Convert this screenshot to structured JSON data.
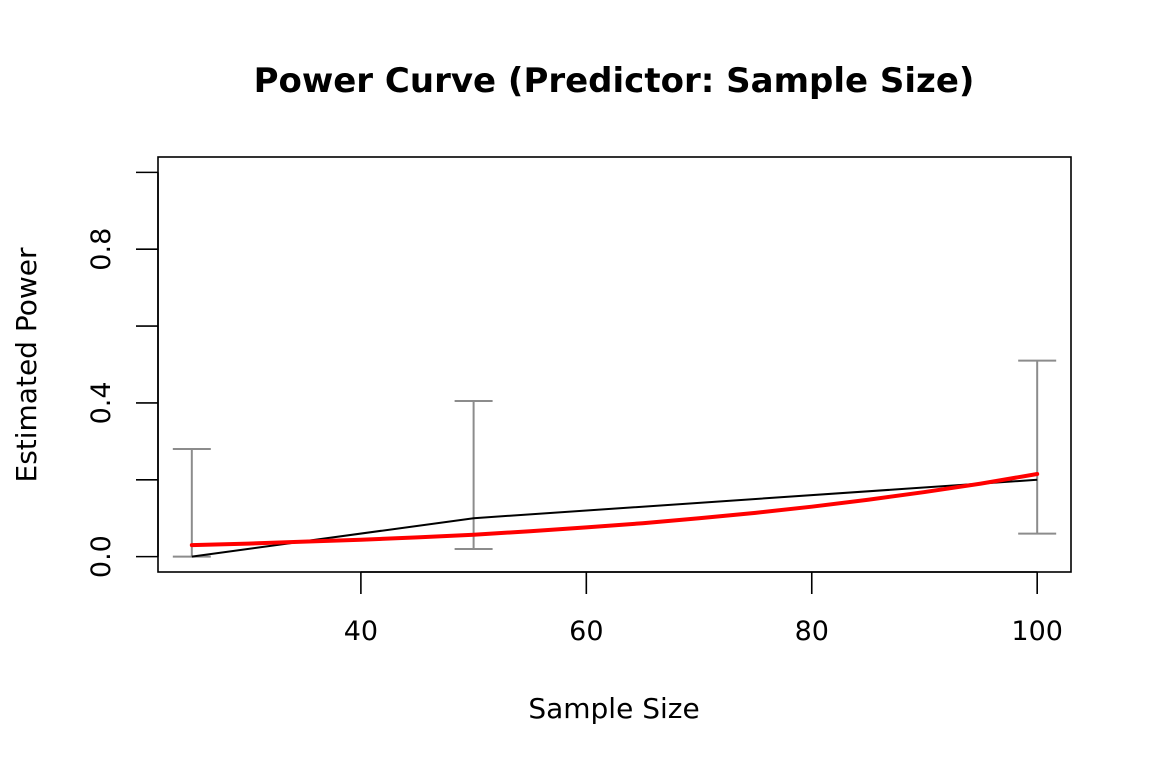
{
  "chart_data": {
    "type": "line",
    "title": "Power Curve (Predictor: Sample Size)",
    "xlabel": "Sample Size",
    "ylabel": "Estimated Power",
    "xlim": [
      22,
      103
    ],
    "ylim": [
      -0.04,
      1.04
    ],
    "x_ticks": [
      40,
      60,
      80,
      100
    ],
    "y_ticks": [
      0.0,
      0.2,
      0.4,
      0.6,
      0.8,
      1.0
    ],
    "y_tick_labels": [
      "0.0",
      "",
      "0.4",
      "",
      "0.8",
      ""
    ],
    "grid": false,
    "observed": {
      "x": [
        25,
        50,
        100
      ],
      "y": [
        0.0,
        0.1,
        0.2
      ],
      "color": "#000000"
    },
    "error_bars": {
      "x": [
        25,
        50,
        100
      ],
      "lower": [
        0.0,
        0.02,
        0.06
      ],
      "upper": [
        0.28,
        0.405,
        0.51
      ],
      "color": "#8c8c8c"
    },
    "fitted": {
      "x": [
        25,
        30,
        35,
        40,
        45,
        50,
        55,
        60,
        65,
        70,
        75,
        80,
        85,
        90,
        95,
        100
      ],
      "y": [
        0.03,
        0.034,
        0.039,
        0.044,
        0.05,
        0.057,
        0.066,
        0.076,
        0.087,
        0.1,
        0.114,
        0.13,
        0.148,
        0.168,
        0.19,
        0.215
      ],
      "color": "#ff0000"
    }
  }
}
